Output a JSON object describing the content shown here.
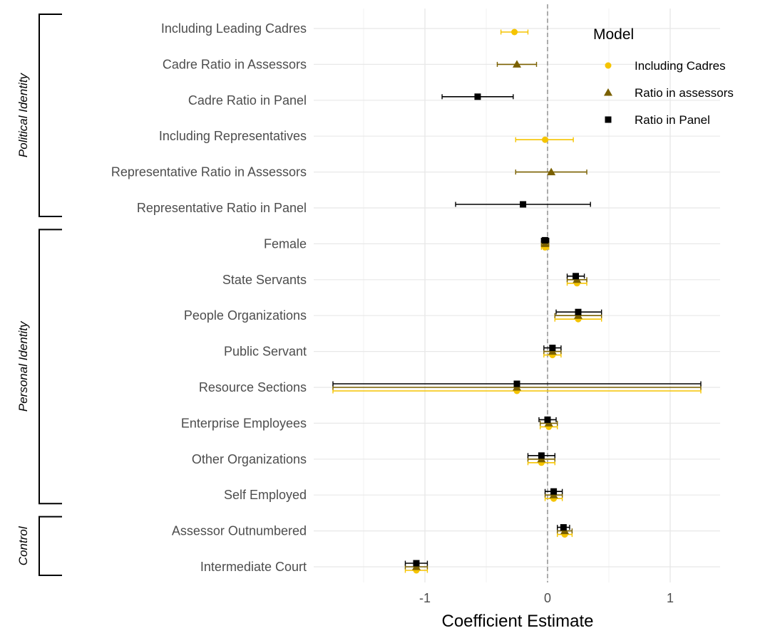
{
  "chart_data": {
    "type": "scatter",
    "subtype": "coefficient-plot",
    "xlabel": "Coefficient Estimate",
    "ylabel": "",
    "xlim": [
      -1.9,
      1.4
    ],
    "xticks": [
      -1,
      0,
      1
    ],
    "xtick_labels": [
      "-1",
      "0",
      "1"
    ],
    "grid": true,
    "reference_line": {
      "x": 0,
      "style": "dashed"
    },
    "legend": {
      "title": "Model",
      "placement": "top-right"
    },
    "categories": [
      "Including Leading Cadres",
      "Cadre Ratio in Assessors",
      "Cadre Ratio in Panel",
      "Including Representatives",
      "Representative Ratio in Assessors",
      "Representative Ratio in Panel",
      "Female",
      "State Servants",
      "People Organizations",
      "Public Servant",
      "Resource Sections",
      "Enterprise Employees",
      "Other Organizations",
      "Self Employed",
      "Assessor Outnumbered",
      "Intermediate Court"
    ],
    "groups": [
      {
        "label": "Political Identity",
        "from": 0,
        "to": 5
      },
      {
        "label": "Personal Identity",
        "from": 6,
        "to": 13
      },
      {
        "label": "Control",
        "from": 14,
        "to": 15
      }
    ],
    "series": [
      {
        "name": "Including Cadres",
        "color": "#F5C400",
        "marker": "circle",
        "points": [
          {
            "category": 0,
            "est": -0.27,
            "lo": -0.38,
            "hi": -0.16
          },
          {
            "category": 3,
            "est": -0.02,
            "lo": -0.26,
            "hi": 0.21
          },
          {
            "category": 6,
            "est": -0.02,
            "lo": -0.05,
            "hi": 0.01
          },
          {
            "category": 7,
            "est": 0.24,
            "lo": 0.16,
            "hi": 0.32
          },
          {
            "category": 8,
            "est": 0.25,
            "lo": 0.06,
            "hi": 0.44
          },
          {
            "category": 9,
            "est": 0.04,
            "lo": -0.03,
            "hi": 0.11
          },
          {
            "category": 10,
            "est": -0.25,
            "lo": -1.75,
            "hi": 1.25
          },
          {
            "category": 11,
            "est": 0.01,
            "lo": -0.06,
            "hi": 0.08
          },
          {
            "category": 12,
            "est": -0.05,
            "lo": -0.16,
            "hi": 0.06
          },
          {
            "category": 13,
            "est": 0.05,
            "lo": -0.02,
            "hi": 0.12
          },
          {
            "category": 14,
            "est": 0.14,
            "lo": 0.08,
            "hi": 0.2
          },
          {
            "category": 15,
            "est": -1.07,
            "lo": -1.16,
            "hi": -0.98
          }
        ]
      },
      {
        "name": "Ratio in assessors",
        "color": "#7A6000",
        "marker": "triangle",
        "points": [
          {
            "category": 1,
            "est": -0.25,
            "lo": -0.41,
            "hi": -0.09
          },
          {
            "category": 4,
            "est": 0.03,
            "lo": -0.26,
            "hi": 0.32
          },
          {
            "category": 6,
            "est": -0.02,
            "lo": -0.05,
            "hi": 0.01
          },
          {
            "category": 7,
            "est": 0.24,
            "lo": 0.16,
            "hi": 0.32
          },
          {
            "category": 8,
            "est": 0.25,
            "lo": 0.06,
            "hi": 0.44
          },
          {
            "category": 9,
            "est": 0.04,
            "lo": -0.03,
            "hi": 0.11
          },
          {
            "category": 10,
            "est": -0.25,
            "lo": -1.75,
            "hi": 1.25
          },
          {
            "category": 11,
            "est": 0.01,
            "lo": -0.06,
            "hi": 0.08
          },
          {
            "category": 12,
            "est": -0.05,
            "lo": -0.16,
            "hi": 0.06
          },
          {
            "category": 13,
            "est": 0.05,
            "lo": -0.02,
            "hi": 0.12
          },
          {
            "category": 14,
            "est": 0.14,
            "lo": 0.08,
            "hi": 0.2
          },
          {
            "category": 15,
            "est": -1.07,
            "lo": -1.16,
            "hi": -0.98
          }
        ]
      },
      {
        "name": "Ratio in Panel",
        "color": "#000000",
        "marker": "square",
        "points": [
          {
            "category": 2,
            "est": -0.57,
            "lo": -0.86,
            "hi": -0.28
          },
          {
            "category": 5,
            "est": -0.2,
            "lo": -0.75,
            "hi": 0.35
          },
          {
            "category": 6,
            "est": -0.02,
            "lo": -0.05,
            "hi": 0.01
          },
          {
            "category": 7,
            "est": 0.23,
            "lo": 0.16,
            "hi": 0.3
          },
          {
            "category": 8,
            "est": 0.25,
            "lo": 0.07,
            "hi": 0.44
          },
          {
            "category": 9,
            "est": 0.04,
            "lo": -0.03,
            "hi": 0.11
          },
          {
            "category": 10,
            "est": -0.25,
            "lo": -1.75,
            "hi": 1.25
          },
          {
            "category": 11,
            "est": 0.0,
            "lo": -0.07,
            "hi": 0.07
          },
          {
            "category": 12,
            "est": -0.05,
            "lo": -0.16,
            "hi": 0.06
          },
          {
            "category": 13,
            "est": 0.05,
            "lo": -0.02,
            "hi": 0.12
          },
          {
            "category": 14,
            "est": 0.13,
            "lo": 0.08,
            "hi": 0.18
          },
          {
            "category": 15,
            "est": -1.07,
            "lo": -1.16,
            "hi": -0.98
          }
        ]
      }
    ]
  }
}
